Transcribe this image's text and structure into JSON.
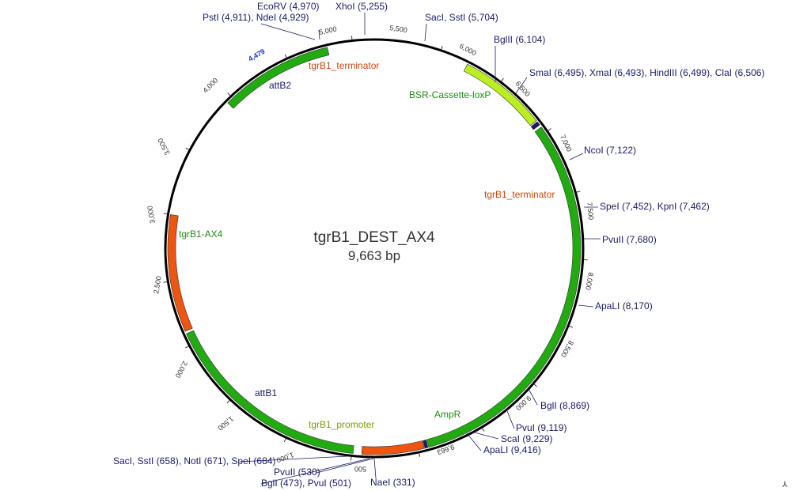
{
  "plasmid": {
    "name": "tgrB1_DEST_AX4",
    "length_label": "9,663 bp",
    "length": 9663
  },
  "features": [
    {
      "id": "tgrB1-AX4",
      "label": "tgrB1-AX4",
      "start": 1450,
      "end": 4420,
      "color": "#22aa11",
      "label_color": "#1e8c14"
    },
    {
      "id": "attB2",
      "label": "attB2",
      "start": 4426,
      "end": 4450,
      "color": "#1a1a66",
      "label_color": "#1a1a66"
    },
    {
      "id": "tgrB1_terminator_top",
      "label": "tgrB1_terminator",
      "start": 4455,
      "end": 4925,
      "color": "#ee5511",
      "label_color": "#c24a0e"
    },
    {
      "id": "BSR-Cassette-loxP",
      "label": "BSR-Cassette-loxP",
      "start": 4990,
      "end": 6590,
      "color": "#22aa11",
      "label_color": "#1e8c14"
    },
    {
      "id": "tgrB1_terminator_right",
      "label": "tgrB1_terminator",
      "start": 6610,
      "end": 7500,
      "color": "#ee5511",
      "label_color": "#c24a0e"
    },
    {
      "id": "AmpR",
      "label": "AmpR",
      "start": 8450,
      "end": 9310,
      "color": "#22aa11",
      "label_color": "#1e8c14"
    },
    {
      "id": "attB1",
      "label": "attB1",
      "start": 1400,
      "end": 1430,
      "color": "#1a1a66",
      "label_color": "#1a1a66"
    },
    {
      "id": "tgrB1_promoter",
      "label": "tgrB1_promoter",
      "start": 720,
      "end": 1390,
      "color": "#bbee22",
      "label_color": "#7a9a10"
    }
  ],
  "ticks": [
    "500",
    "1,000",
    "1,500",
    "2,000",
    "2,500",
    "3,000",
    "3,500",
    "4,000",
    "5,000",
    "5,500",
    "6,000",
    "6,500",
    "7,000",
    "7,500",
    "8,000",
    "8,500",
    "9,000",
    "9,663"
  ],
  "marker": {
    "label": "4,479"
  },
  "sites": [
    {
      "label": "EcoRV (4,970)"
    },
    {
      "label": "PstI (4,911), NdeI (4,929)"
    },
    {
      "label": "XhoI (5,255)"
    },
    {
      "label": "SacI, SstI (5,704)"
    },
    {
      "label": "BglII (6,104)"
    },
    {
      "label": "SmaI (6,495), XmaI (6,493), HindIII (6,499), ClaI (6,506)"
    },
    {
      "label": "NcoI (7,122)"
    },
    {
      "label": "SpeI (7,452), KpnI (7,462)"
    },
    {
      "label": "PvuII (7,680)"
    },
    {
      "label": "ApaLI (8,170)"
    },
    {
      "label": "BglI (8,869)"
    },
    {
      "label": "PvuI (9,119)"
    },
    {
      "label": "ScaI (9,229)"
    },
    {
      "label": "ApaLI (9,416)"
    },
    {
      "label": "NaeI (331)"
    },
    {
      "label": "BglI (473), PvuI (501)"
    },
    {
      "label": "PvuII (530)"
    },
    {
      "label": "SacI, SstI (658), NotI (671), SpeI (684)"
    }
  ],
  "corner_glyph": "⅄"
}
